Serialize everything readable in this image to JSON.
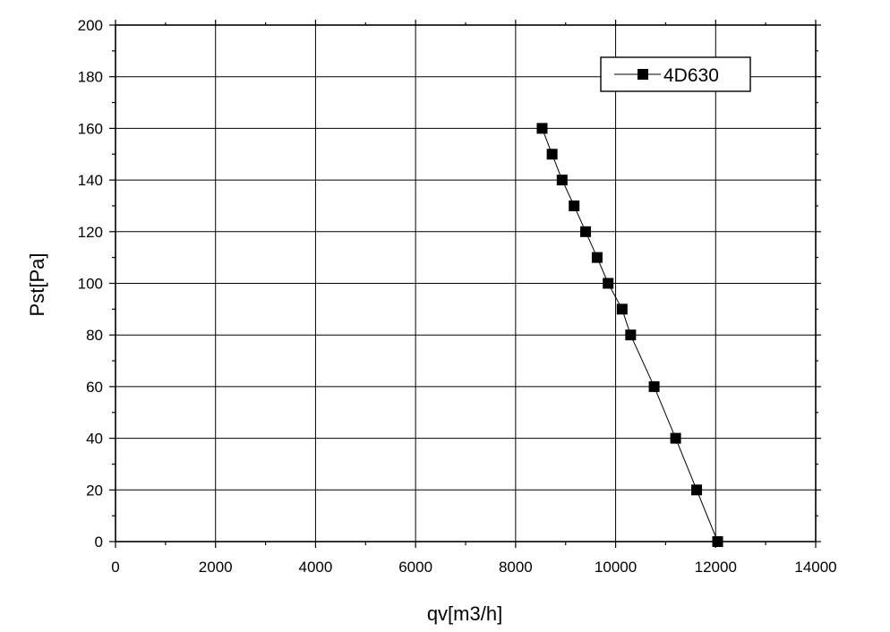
{
  "chart_data": {
    "type": "line",
    "xlabel": "qv[m3/h]",
    "ylabel": "Pst[Pa]",
    "xlim": [
      0,
      14000
    ],
    "ylim": [
      0,
      200
    ],
    "x_ticks": [
      0,
      2000,
      4000,
      6000,
      8000,
      10000,
      12000,
      14000
    ],
    "y_ticks": [
      0,
      20,
      40,
      60,
      80,
      100,
      120,
      140,
      160,
      180,
      200
    ],
    "x_tick_labels": [
      "0",
      "2000",
      "4000",
      "6000",
      "8000",
      "10000",
      "12000",
      "14000"
    ],
    "y_tick_labels": [
      "0",
      "20",
      "40",
      "60",
      "80",
      "100",
      "120",
      "140",
      "160",
      "180",
      "200"
    ],
    "grid": true,
    "legend_position": "top-right",
    "series": [
      {
        "name": "4D630",
        "marker": "square",
        "color": "#000000",
        "x": [
          8530,
          8730,
          8930,
          9170,
          9400,
          9630,
          9850,
          10130,
          10300,
          10770,
          11200,
          11620,
          12040
        ],
        "y": [
          160,
          150,
          140,
          130,
          120,
          110,
          100,
          90,
          80,
          60,
          40,
          20,
          0
        ]
      }
    ]
  }
}
